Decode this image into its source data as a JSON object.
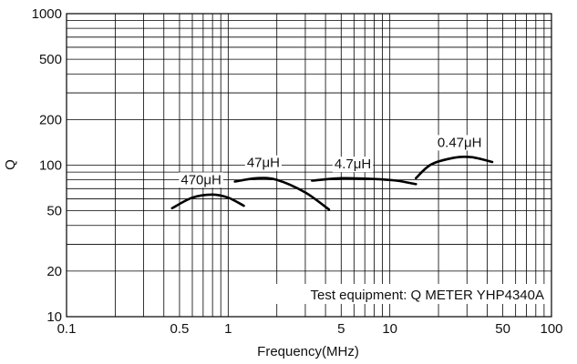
{
  "chart_data": {
    "type": "line",
    "title": "",
    "xlabel": "Frequency(MHz)",
    "ylabel": "Q",
    "x_scale": "log",
    "y_scale": "log",
    "xlim": [
      0.1,
      100
    ],
    "ylim": [
      10,
      1000
    ],
    "grid": true,
    "x_ticks": [
      {
        "value": 0.1,
        "label": "0.1"
      },
      {
        "value": 0.5,
        "label": "0.5"
      },
      {
        "value": 1,
        "label": "1"
      },
      {
        "value": 5,
        "label": "5"
      },
      {
        "value": 10,
        "label": "10"
      },
      {
        "value": 50,
        "label": "50"
      },
      {
        "value": 100,
        "label": "100"
      }
    ],
    "y_ticks": [
      {
        "value": 10,
        "label": "10"
      },
      {
        "value": 20,
        "label": "20"
      },
      {
        "value": 50,
        "label": "50"
      },
      {
        "value": 100,
        "label": "100"
      },
      {
        "value": 200,
        "label": "200"
      },
      {
        "value": 500,
        "label": "500"
      },
      {
        "value": 1000,
        "label": "1000"
      }
    ],
    "series": [
      {
        "name": "470μH",
        "x": [
          0.45,
          0.6,
          0.8,
          1.0,
          1.25
        ],
        "y": [
          52,
          61,
          64,
          61,
          54
        ]
      },
      {
        "name": "47μH",
        "x": [
          1.1,
          1.5,
          2.0,
          3.0,
          4.2
        ],
        "y": [
          78,
          82,
          80,
          66,
          51
        ]
      },
      {
        "name": "4.7μH",
        "x": [
          3.3,
          5.0,
          8.0,
          11.0,
          14.5
        ],
        "y": [
          79,
          82,
          81,
          79,
          75
        ]
      },
      {
        "name": "0.47μH",
        "x": [
          14.5,
          18.0,
          25.0,
          32.0,
          43.0
        ],
        "y": [
          82,
          101,
          112,
          113,
          105
        ]
      }
    ],
    "annotations": [
      "Test equipment: Q METER YHP4340A"
    ]
  }
}
